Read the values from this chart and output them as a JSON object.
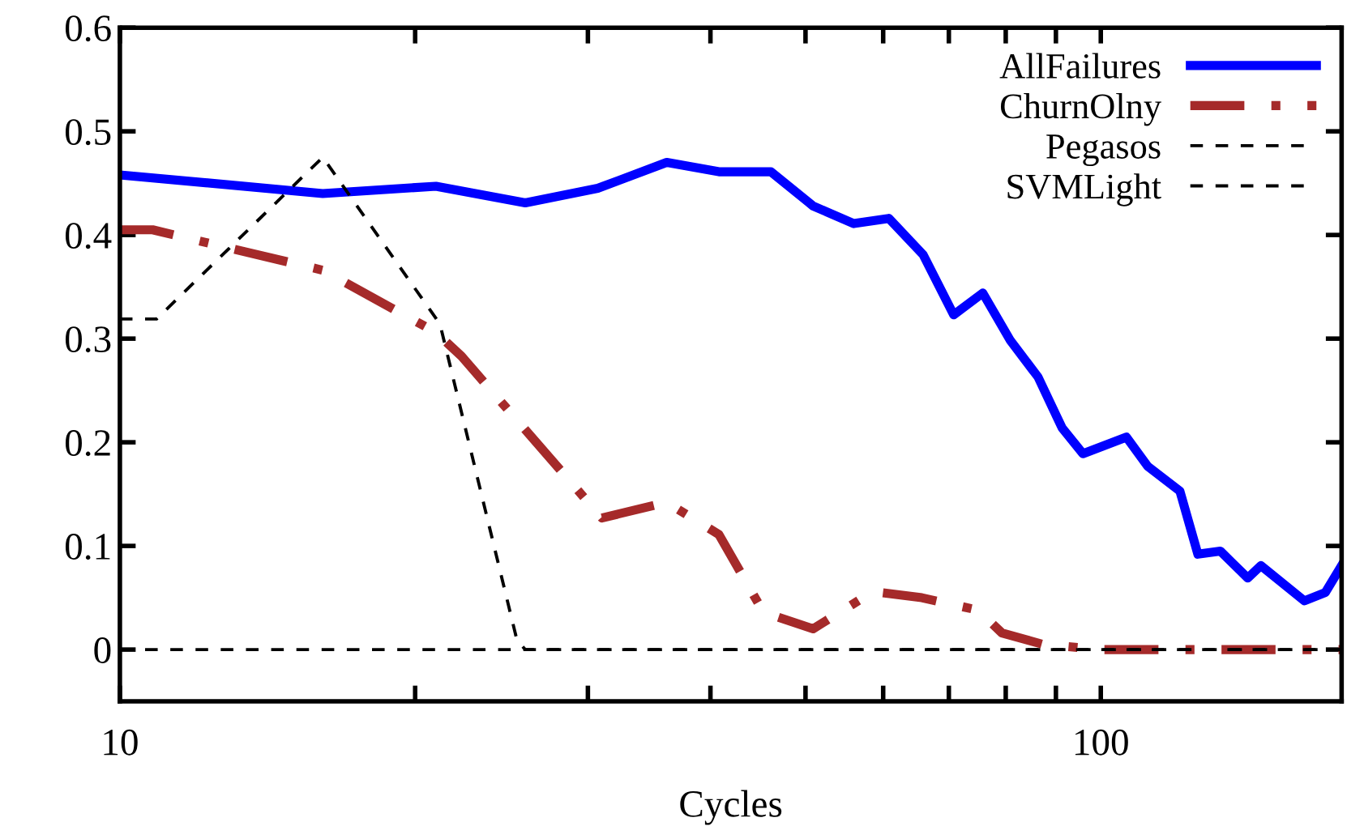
{
  "chart_data": {
    "type": "line",
    "xlabel": "Cycles",
    "log": "x",
    "xlim": [
      10,
      176
    ],
    "xticks": [
      10,
      {
        "value": 20,
        "label": null
      },
      {
        "value": 30,
        "label": null
      },
      {
        "value": 40,
        "label": null
      },
      {
        "value": 50,
        "label": null
      },
      {
        "value": 60,
        "label": null
      },
      {
        "value": 70,
        "label": null
      },
      {
        "value": 80,
        "label": null
      },
      {
        "value": 90,
        "label": null
      },
      100
    ],
    "ylim": [
      -0.05,
      0.6
    ],
    "yticks": [
      0,
      0.1,
      0.2,
      0.3,
      0.4,
      0.5,
      0.6
    ],
    "grid": false,
    "legend": "top right",
    "marker": "none",
    "series": [
      {
        "name": "AllFailures",
        "color": "#0000ff",
        "line_style": "solid",
        "x": [
          10,
          16.1,
          21,
          25.9,
          30.7,
          36.1,
          40.8,
          46.1,
          50.9,
          56,
          60.8,
          65.9,
          70.8,
          75.8,
          80.9,
          86.3,
          91.3,
          95.9,
          106.2,
          111.6,
          120.4,
          125.6,
          132.4,
          141.2,
          145.6,
          161.3,
          169.4,
          176
        ],
        "values": [
          0.458,
          0.44,
          0.447,
          0.431,
          0.445,
          0.47,
          0.461,
          0.461,
          0.428,
          0.411,
          0.416,
          0.381,
          0.323,
          0.344,
          0.298,
          0.263,
          0.214,
          0.189,
          0.205,
          0.177,
          0.153,
          0.092,
          0.095,
          0.069,
          0.081,
          0.047,
          0.055,
          0.081
        ]
      },
      {
        "name": "ChurnOlny",
        "color": "#a52a2a",
        "line_style": "dashdot",
        "x": [
          10,
          10.8,
          16.1,
          21,
          22.3,
          31,
          36.1,
          40.8,
          45.3,
          50.9,
          58.6,
          65.7,
          75,
          79.3,
          87.3,
          100,
          176
        ],
        "values": [
          0.405,
          0.405,
          0.366,
          0.306,
          0.283,
          0.127,
          0.142,
          0.111,
          0.036,
          0.02,
          0.056,
          0.05,
          0.038,
          0.016,
          0.005,
          0,
          0
        ]
      },
      {
        "name": "Pegasos",
        "color": "#000000",
        "line_style": "dashed",
        "x": [
          10,
          10.9,
          16.1,
          21.2,
          21.8,
          25.4,
          25.9,
          176
        ],
        "values": [
          0.319,
          0.319,
          0.475,
          0.314,
          0.267,
          0.009,
          0,
          0
        ]
      },
      {
        "name": "SVMLight",
        "color": "#000000",
        "line_style": "dashed",
        "x": [
          10,
          176
        ],
        "values": [
          0,
          0
        ]
      }
    ]
  }
}
